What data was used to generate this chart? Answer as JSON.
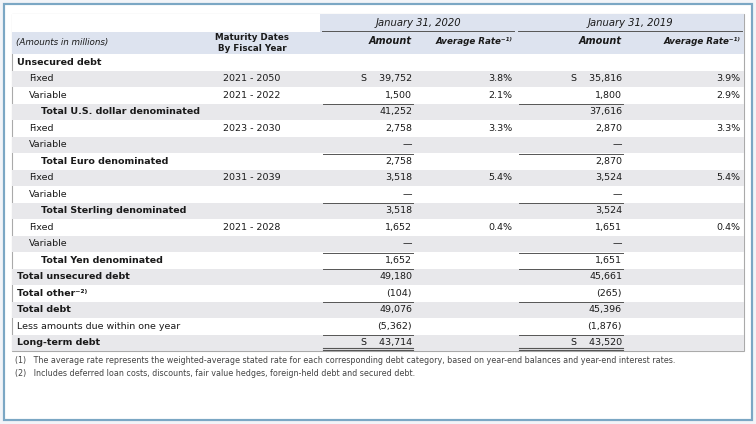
{
  "rows": [
    {
      "label": "Unsecured debt",
      "indent": 0,
      "bold": true,
      "maturity": "",
      "amt2020": "",
      "rate2020": "",
      "amt2019": "",
      "rate2019": "",
      "shaded": false,
      "top_border": false,
      "double_border": false
    },
    {
      "label": "Fixed",
      "indent": 1,
      "bold": false,
      "maturity": "2021 - 2050",
      "amt2020": "S    39,752",
      "rate2020": "3.8%",
      "amt2019": "S    35,816",
      "rate2019": "3.9%",
      "shaded": true,
      "top_border": false,
      "double_border": false
    },
    {
      "label": "Variable",
      "indent": 1,
      "bold": false,
      "maturity": "2021 - 2022",
      "amt2020": "1,500",
      "rate2020": "2.1%",
      "amt2019": "1,800",
      "rate2019": "2.9%",
      "shaded": false,
      "top_border": false,
      "double_border": false
    },
    {
      "label": "Total U.S. dollar denominated",
      "indent": 2,
      "bold": true,
      "maturity": "",
      "amt2020": "41,252",
      "rate2020": "",
      "amt2019": "37,616",
      "rate2019": "",
      "shaded": true,
      "top_border": true,
      "double_border": false
    },
    {
      "label": "Fixed",
      "indent": 1,
      "bold": false,
      "maturity": "2023 - 2030",
      "amt2020": "2,758",
      "rate2020": "3.3%",
      "amt2019": "2,870",
      "rate2019": "3.3%",
      "shaded": false,
      "top_border": false,
      "double_border": false
    },
    {
      "label": "Variable",
      "indent": 1,
      "bold": false,
      "maturity": "",
      "amt2020": "—",
      "rate2020": "",
      "amt2019": "—",
      "rate2019": "",
      "shaded": true,
      "top_border": false,
      "double_border": false
    },
    {
      "label": "Total Euro denominated",
      "indent": 2,
      "bold": true,
      "maturity": "",
      "amt2020": "2,758",
      "rate2020": "",
      "amt2019": "2,870",
      "rate2019": "",
      "shaded": false,
      "top_border": true,
      "double_border": false
    },
    {
      "label": "Fixed",
      "indent": 1,
      "bold": false,
      "maturity": "2031 - 2039",
      "amt2020": "3,518",
      "rate2020": "5.4%",
      "amt2019": "3,524",
      "rate2019": "5.4%",
      "shaded": true,
      "top_border": false,
      "double_border": false
    },
    {
      "label": "Variable",
      "indent": 1,
      "bold": false,
      "maturity": "",
      "amt2020": "—",
      "rate2020": "",
      "amt2019": "—",
      "rate2019": "",
      "shaded": false,
      "top_border": false,
      "double_border": false
    },
    {
      "label": "Total Sterling denominated",
      "indent": 2,
      "bold": true,
      "maturity": "",
      "amt2020": "3,518",
      "rate2020": "",
      "amt2019": "3,524",
      "rate2019": "",
      "shaded": true,
      "top_border": true,
      "double_border": false
    },
    {
      "label": "Fixed",
      "indent": 1,
      "bold": false,
      "maturity": "2021 - 2028",
      "amt2020": "1,652",
      "rate2020": "0.4%",
      "amt2019": "1,651",
      "rate2019": "0.4%",
      "shaded": false,
      "top_border": false,
      "double_border": false
    },
    {
      "label": "Variable",
      "indent": 1,
      "bold": false,
      "maturity": "",
      "amt2020": "—",
      "rate2020": "",
      "amt2019": "—",
      "rate2019": "",
      "shaded": true,
      "top_border": false,
      "double_border": false
    },
    {
      "label": "Total Yen denominated",
      "indent": 2,
      "bold": true,
      "maturity": "",
      "amt2020": "1,652",
      "rate2020": "",
      "amt2019": "1,651",
      "rate2019": "",
      "shaded": false,
      "top_border": true,
      "double_border": false
    },
    {
      "label": "Total unsecured debt",
      "indent": 0,
      "bold": true,
      "maturity": "",
      "amt2020": "49,180",
      "rate2020": "",
      "amt2019": "45,661",
      "rate2019": "",
      "shaded": true,
      "top_border": true,
      "double_border": false
    },
    {
      "label": "Total other⁻²⁾",
      "indent": 0,
      "bold": true,
      "maturity": "",
      "amt2020": "(104)",
      "rate2020": "",
      "amt2019": "(265)",
      "rate2019": "",
      "shaded": false,
      "top_border": false,
      "double_border": false
    },
    {
      "label": "Total debt",
      "indent": 0,
      "bold": true,
      "maturity": "",
      "amt2020": "49,076",
      "rate2020": "",
      "amt2019": "45,396",
      "rate2019": "",
      "shaded": true,
      "top_border": true,
      "double_border": false
    },
    {
      "label": "Less amounts due within one year",
      "indent": 0,
      "bold": false,
      "maturity": "",
      "amt2020": "(5,362)",
      "rate2020": "",
      "amt2019": "(1,876)",
      "rate2019": "",
      "shaded": false,
      "top_border": false,
      "double_border": false
    },
    {
      "label": "Long-term debt",
      "indent": 0,
      "bold": true,
      "maturity": "",
      "amt2020": "S    43,714",
      "rate2020": "",
      "amt2019": "S    43,520",
      "rate2019": "",
      "shaded": true,
      "top_border": true,
      "double_border": true
    }
  ],
  "footnotes": [
    "(1)   The average rate represents the weighted-average stated rate for each corresponding debt category, based on year-end balances and year-end interest rates.",
    "(2)   Includes deferred loan costs, discounts, fair value hedges, foreign-held debt and secured debt."
  ],
  "shaded_color": "#e8e8eb",
  "text_color": "#1a1a1a",
  "outer_border_color": "#7ba7c4",
  "inner_border_color": "#aaaaaa",
  "line_color": "#555555"
}
